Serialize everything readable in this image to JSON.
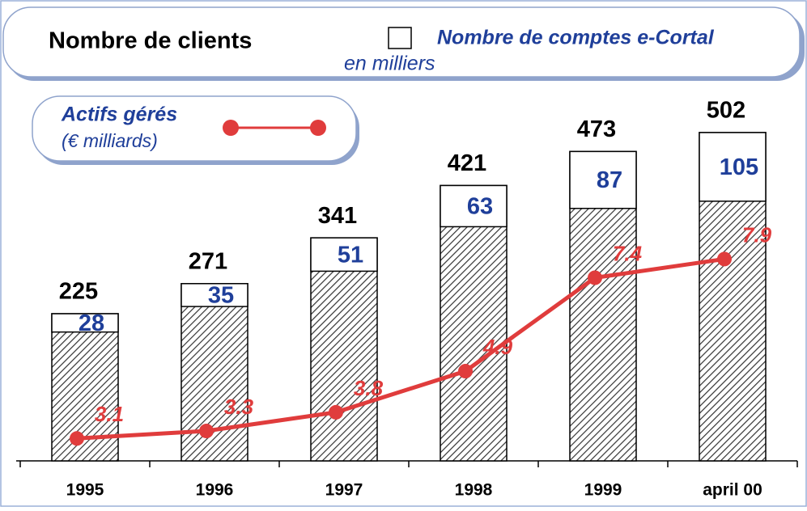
{
  "chart_data": {
    "type": "bar",
    "title": "Nombre de clients",
    "subtitle": "en milliers",
    "categories": [
      "1995",
      "1996",
      "1997",
      "1998",
      "1999",
      "april 00"
    ],
    "series": [
      {
        "name": "Nombre de clients",
        "color": "#ffffff",
        "values": [
          225,
          271,
          341,
          421,
          473,
          502
        ]
      },
      {
        "name": "Nombre de comptes e-Cortal",
        "color": "#ffffff",
        "values": [
          28,
          35,
          51,
          63,
          87,
          105
        ]
      },
      {
        "name": "Actifs gérés",
        "unit": "(€ milliards)",
        "color": "#e03c3c",
        "axis": "y2",
        "values": [
          3.1,
          3.3,
          3.8,
          4.9,
          7.4,
          7.9
        ]
      }
    ],
    "ylim": [
      0,
      560
    ],
    "y2lim": [
      2.5,
      12.3
    ]
  }
}
